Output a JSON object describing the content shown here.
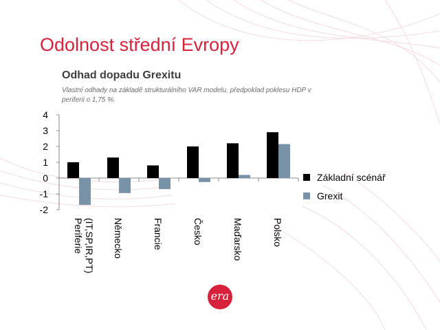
{
  "slide": {
    "title": "Odolnost střední Evropy",
    "logo_text": "era"
  },
  "colors": {
    "title": "#d7213a",
    "series_baseline": "#000000",
    "series_grexit": "#7892a8",
    "text": "#000000"
  },
  "chart_data": {
    "type": "bar",
    "title": "Odhad dopadu Grexitu",
    "subtitle": "Vlastní odhady na základě strukturálního VAR modelu, předpoklad poklesu HDP v periferii o 1,75 %.",
    "categories": [
      "Periferie (IT,SP,IR,PT)",
      "Německo",
      "Francie",
      "Česko",
      "Maďarsko",
      "Polsko"
    ],
    "series": [
      {
        "name": "Základní scénář",
        "values": [
          1.0,
          1.3,
          0.8,
          2.0,
          2.2,
          2.9
        ]
      },
      {
        "name": "Grexit",
        "values": [
          -1.7,
          -0.95,
          -0.7,
          -0.25,
          0.2,
          2.15
        ]
      }
    ],
    "ylim": [
      -2,
      4
    ],
    "yticks": [
      -2,
      -1,
      0,
      1,
      2,
      3,
      4
    ],
    "legend_position": "right",
    "xlabel": "",
    "ylabel": ""
  }
}
